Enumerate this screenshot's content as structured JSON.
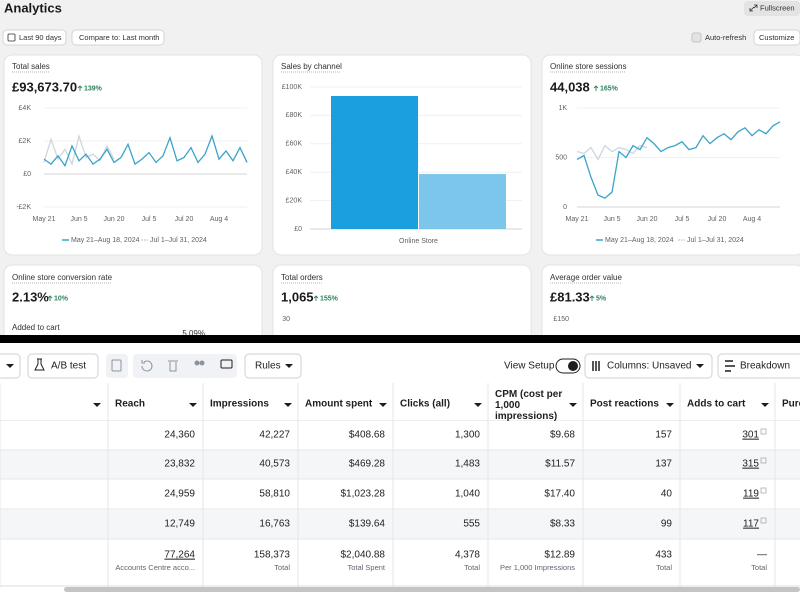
{
  "header": {
    "title": "Analytics",
    "fullscreen": "Fullscreen",
    "date_range": "Last 90 days",
    "compare": "Compare to: Last month",
    "auto_refresh": "Auto-refresh",
    "customize": "Customize"
  },
  "chart_data": [
    {
      "type": "line",
      "title": "Total sales",
      "headline": "£93,673.70",
      "change": "139%",
      "xlim": [
        0,
        29
      ],
      "xticks": [
        {
          "value": 0,
          "label": "May 21"
        },
        {
          "value": 5,
          "label": "Jun 5"
        },
        {
          "value": 10,
          "label": "Jun 20"
        },
        {
          "value": 15,
          "label": "Jul 5"
        },
        {
          "value": 20,
          "label": "Jul 20"
        },
        {
          "value": 25,
          "label": "Aug 4"
        }
      ],
      "ylim": [
        -2000,
        4000
      ],
      "yticks": [
        {
          "value": 4000,
          "label": "£4K"
        },
        {
          "value": 2000,
          "label": "£2K"
        },
        {
          "value": 0,
          "label": "£0"
        },
        {
          "value": -2000,
          "label": "-£2K"
        }
      ],
      "grid": true,
      "series": [
        {
          "name": "May 21–Aug 18, 2024",
          "color": "#3aa3c9",
          "values": [
            900,
            600,
            1100,
            500,
            1700,
            800,
            1200,
            600,
            900,
            1500,
            700,
            1000,
            1800,
            600,
            900,
            1300,
            700,
            1100,
            2200,
            800,
            1000,
            1600,
            700,
            1200,
            2300,
            900,
            1400,
            800,
            1600,
            700
          ]
        },
        {
          "name": "Jul 1–Jul 31, 2024",
          "color": "#cdd6e0",
          "values": [
            700,
            2100,
            900,
            1500,
            600,
            2300,
            1000,
            1200,
            800,
            1700,
            900
          ]
        }
      ]
    },
    {
      "type": "bar",
      "title": "Sales by channel",
      "categories": [
        "Online Store"
      ],
      "ylim": [
        0,
        100000
      ],
      "yticks": [
        {
          "value": 100000,
          "label": "£100K"
        },
        {
          "value": 80000,
          "label": "£80K"
        },
        {
          "value": 60000,
          "label": "£60K"
        },
        {
          "value": 40000,
          "label": "£40K"
        },
        {
          "value": 20000,
          "label": "£20K"
        },
        {
          "value": 0,
          "label": "£0"
        }
      ],
      "grid": true,
      "series": [
        {
          "color": "#1c9fdf",
          "values": [
            93673.7
          ]
        },
        {
          "color": "#7cc6ec",
          "values": [
            38700
          ]
        }
      ]
    },
    {
      "type": "line",
      "title": "Online store sessions",
      "headline": "44,038",
      "change": "165%",
      "xlim": [
        0,
        29
      ],
      "xticks": [
        {
          "value": 0,
          "label": "May 21"
        },
        {
          "value": 5,
          "label": "Jun 5"
        },
        {
          "value": 10,
          "label": "Jun 20"
        },
        {
          "value": 15,
          "label": "Jul 5"
        },
        {
          "value": 20,
          "label": "Jul 20"
        },
        {
          "value": 25,
          "label": "Aug 4"
        }
      ],
      "ylim": [
        0,
        1000
      ],
      "yticks": [
        {
          "value": 1000,
          "label": "1K"
        },
        500,
        0
      ],
      "grid": true,
      "series": [
        {
          "name": "May 21–Aug 18, 2024",
          "color": "#3aa3c9",
          "values": [
            480,
            520,
            300,
            120,
            90,
            150,
            560,
            500,
            620,
            580,
            700,
            640,
            560,
            600,
            620,
            660,
            580,
            600,
            720,
            640,
            700,
            740,
            680,
            760,
            800,
            720,
            780,
            740,
            820,
            860
          ]
        },
        {
          "name": "Jul 1–Jul 31, 2024",
          "color": "#cdd6e0",
          "values": [
            560,
            540,
            600,
            480,
            620,
            560,
            600,
            580,
            540,
            620,
            600
          ]
        }
      ]
    }
  ],
  "cards": [
    {
      "title": "Online store conversion rate",
      "headline": "2.13%",
      "change": "10%",
      "sub": "Added to cart",
      "sub_value": "5.09%"
    },
    {
      "title": "Total orders",
      "headline": "1,065",
      "change": "155%",
      "axis_top": "30"
    },
    {
      "title": "Average order value",
      "headline": "£81.33",
      "change": "5%",
      "axis_top": "£150"
    }
  ],
  "toolbar": {
    "ab_test": "A/B test",
    "rules": "Rules",
    "view_setup": "View Setup",
    "columns": "Columns: Unsaved",
    "breakdown": "Breakdown"
  },
  "table": {
    "columns": [
      "Reach",
      "Impressions",
      "Amount spent",
      "Clicks (all)",
      "CPM (cost per 1,000 impressions)",
      "Post reactions",
      "Adds to cart",
      "Purc"
    ],
    "rows": [
      [
        "24,360",
        "42,227",
        "$408.68",
        "1,300",
        "$9.68",
        "157",
        "301"
      ],
      [
        "23,832",
        "40,573",
        "$469.28",
        "1,483",
        "$11.57",
        "137",
        "315"
      ],
      [
        "24,959",
        "58,810",
        "$1,023.28",
        "1,040",
        "$17.40",
        "40",
        "119"
      ],
      [
        "12,749",
        "16,763",
        "$139.64",
        "555",
        "$8.33",
        "99",
        "117"
      ]
    ],
    "totals": [
      {
        "value": "77,264",
        "note": "Accounts Centre acco..."
      },
      {
        "value": "158,373",
        "note": "Total"
      },
      {
        "value": "$2,040.88",
        "note": "Total Spent"
      },
      {
        "value": "4,378",
        "note": "Total"
      },
      {
        "value": "$12.89",
        "note": "Per 1,000 Impressions"
      },
      {
        "value": "433",
        "note": "Total"
      },
      {
        "value": "—",
        "note": "Total"
      }
    ]
  }
}
